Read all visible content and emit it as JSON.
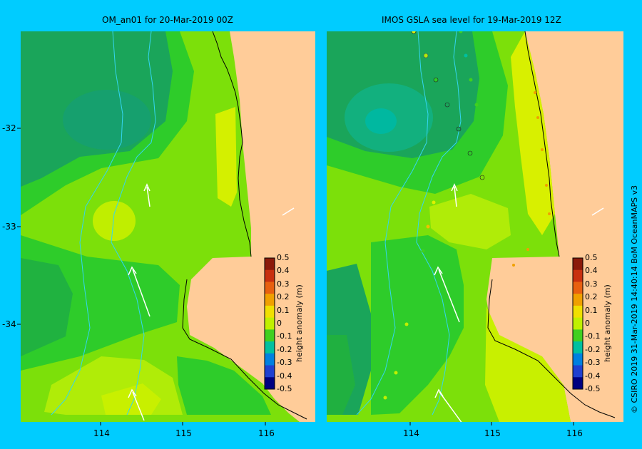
{
  "panels": [
    {
      "title": "OM_an01  for 20-Mar-2019 00Z"
    },
    {
      "title": "IMOS  GSLA sea level   for 19-Mar-2019 12Z"
    }
  ],
  "axes": {
    "lat_ticks": [
      "-32",
      "-33",
      "-34"
    ],
    "lon_ticks": [
      "114",
      "115",
      "116"
    ]
  },
  "colorbar": {
    "label": "height anomaly (m)",
    "ticks": [
      "0.5",
      "0.4",
      "0.3",
      "0.2",
      "0.1",
      "0",
      "-0.1",
      "-0.2",
      "-0.3",
      "-0.4",
      "-0.5"
    ],
    "colors": [
      "#8b1a0a",
      "#c83010",
      "#e86010",
      "#f0a000",
      "#f0e000",
      "#c0f000",
      "#40d020",
      "#00c0a0",
      "#0080e0",
      "#2040d0",
      "#000080"
    ]
  },
  "credit": "© CSIRO 2019   31-Mar-2019 14:40:14 BoM OceanMAPS v3",
  "colors": {
    "frame": "#00ccff",
    "land": "#ffcc99",
    "bathy_line": "#33d6f0"
  }
}
